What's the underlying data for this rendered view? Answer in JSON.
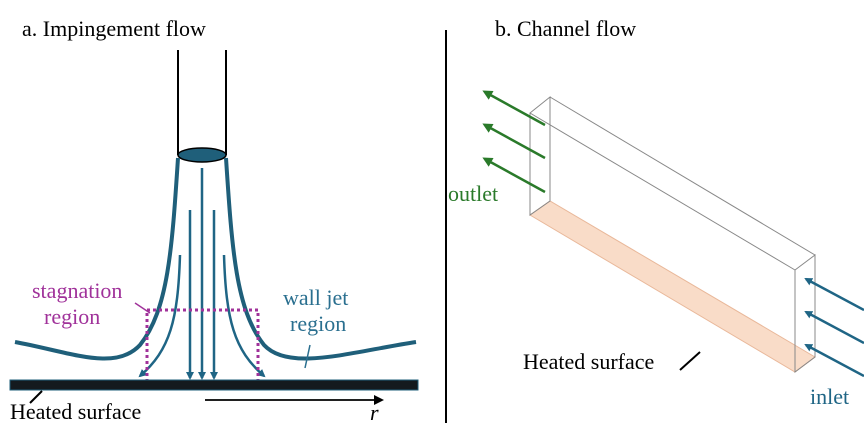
{
  "panel_a": {
    "title": "a. Impingement flow",
    "stagnation_label": [
      "stagnation",
      "region"
    ],
    "wall_jet_label": [
      "wall jet",
      "region"
    ],
    "surface_label": "Heated surface",
    "radial_axis": "r"
  },
  "panel_b": {
    "title": "b. Channel flow",
    "outlet_label": "outlet",
    "inlet_label": "inlet",
    "surface_label": "Heated surface"
  }
}
